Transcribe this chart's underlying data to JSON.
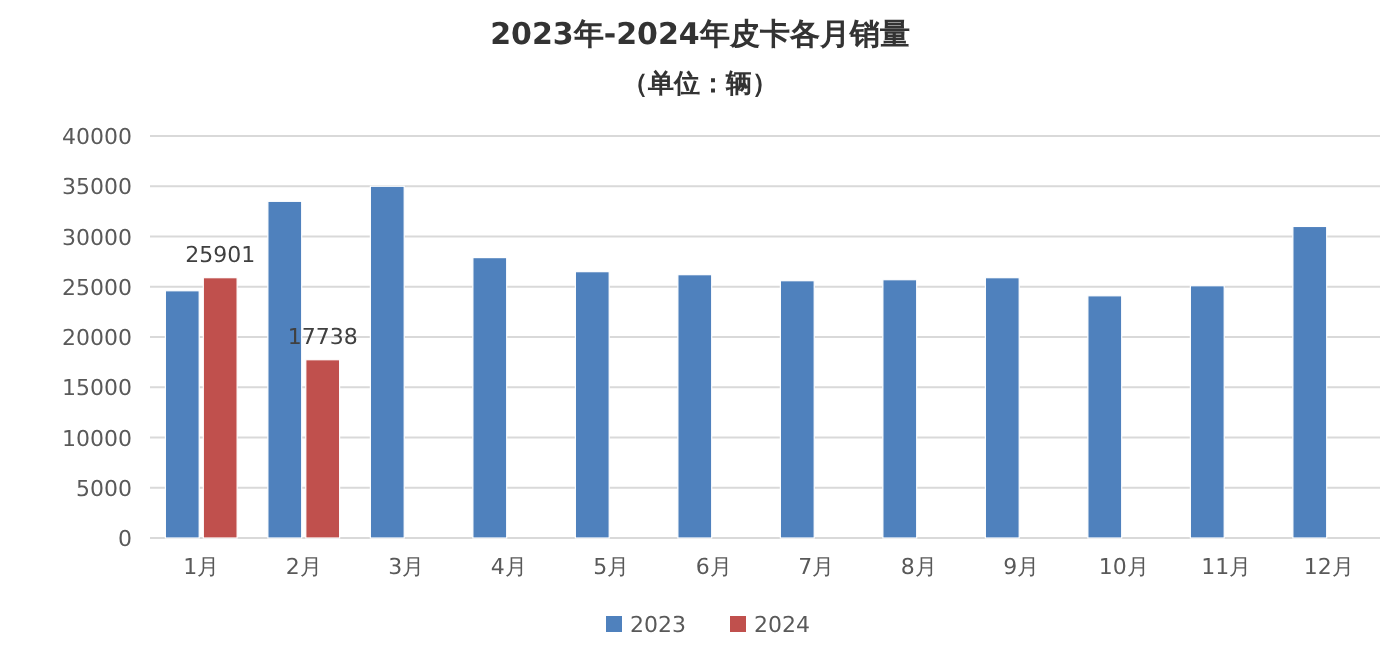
{
  "chart_data": {
    "type": "bar",
    "title": "2023年-2024年皮卡各月销量",
    "subtitle": "（单位：辆）",
    "categories": [
      "1月",
      "2月",
      "3月",
      "4月",
      "5月",
      "6月",
      "7月",
      "8月",
      "9月",
      "10月",
      "11月",
      "12月"
    ],
    "series": [
      {
        "name": "2023",
        "color": "#4f81bd",
        "values": [
          24600,
          33500,
          35000,
          27900,
          26500,
          26200,
          25600,
          25700,
          25900,
          24100,
          25100,
          31000
        ]
      },
      {
        "name": "2024",
        "color": "#c0504d",
        "values": [
          25901,
          17738,
          null,
          null,
          null,
          null,
          null,
          null,
          null,
          null,
          null,
          null
        ],
        "value_labels": [
          "25901",
          "17738",
          null,
          null,
          null,
          null,
          null,
          null,
          null,
          null,
          null,
          null
        ]
      }
    ],
    "ylim": [
      0,
      40000
    ],
    "yticks": [
      0,
      5000,
      10000,
      15000,
      20000,
      25000,
      30000,
      35000,
      40000
    ],
    "grid": "y",
    "legend": "bottom"
  }
}
